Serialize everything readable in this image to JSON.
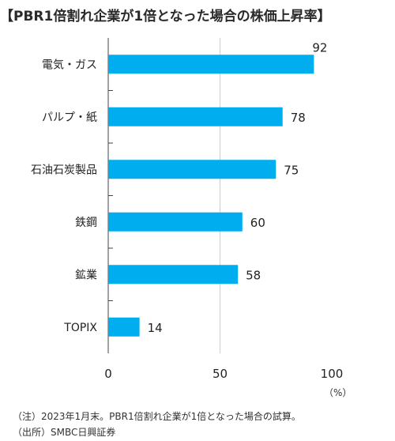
{
  "title": "【PBR1倍割れ企業が1倍となった場合の株価上昇率】",
  "chart_data": {
    "type": "bar",
    "orientation": "horizontal",
    "categories": [
      "電気・ガス",
      "パルプ・紙",
      "石油石炭製品",
      "鉄鋼",
      "鉱業",
      "TOPIX"
    ],
    "values": [
      92,
      78,
      75,
      60,
      58,
      14
    ],
    "xlim": [
      0,
      100
    ],
    "xticks": [
      "0",
      "50",
      "100"
    ],
    "unit": "（%）",
    "grid": "vertical-lines",
    "bar_color": "#00aeef"
  },
  "notes": [
    "（注）2023年1月末。PBR1倍割れ企業が1倍となった場合の試算。",
    "（出所）SMBC日興証券"
  ]
}
